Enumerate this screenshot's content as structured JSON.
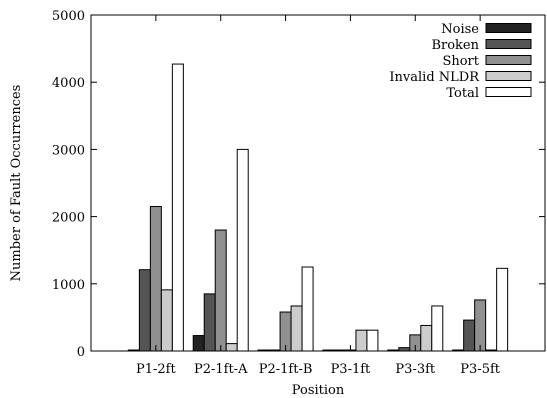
{
  "chart_data": {
    "type": "bar",
    "xlabel": "Position",
    "ylabel": "Number of Fault Occurrences",
    "ylim": [
      0,
      5000
    ],
    "yticks": [
      0,
      1000,
      2000,
      3000,
      4000,
      5000
    ],
    "grid": false,
    "legend_position": "top-right",
    "categories": [
      "P1-2ft",
      "P2-1ft-A",
      "P2-1ft-B",
      "P3-1ft",
      "P3-3ft",
      "P3-5ft"
    ],
    "series": [
      {
        "name": "Noise",
        "color": "#222222",
        "values": [
          5,
          230,
          5,
          5,
          5,
          5
        ]
      },
      {
        "name": "Broken",
        "color": "#555555",
        "values": [
          1210,
          850,
          5,
          5,
          50,
          460
        ]
      },
      {
        "name": "Short",
        "color": "#909090",
        "values": [
          2150,
          1800,
          580,
          5,
          240,
          760
        ]
      },
      {
        "name": "Invalid NLDR",
        "color": "#cccccc",
        "values": [
          910,
          110,
          670,
          310,
          380,
          10
        ]
      },
      {
        "name": "Total",
        "color": "#ffffff",
        "values": [
          4270,
          3000,
          1250,
          310,
          670,
          1230
        ]
      }
    ]
  }
}
